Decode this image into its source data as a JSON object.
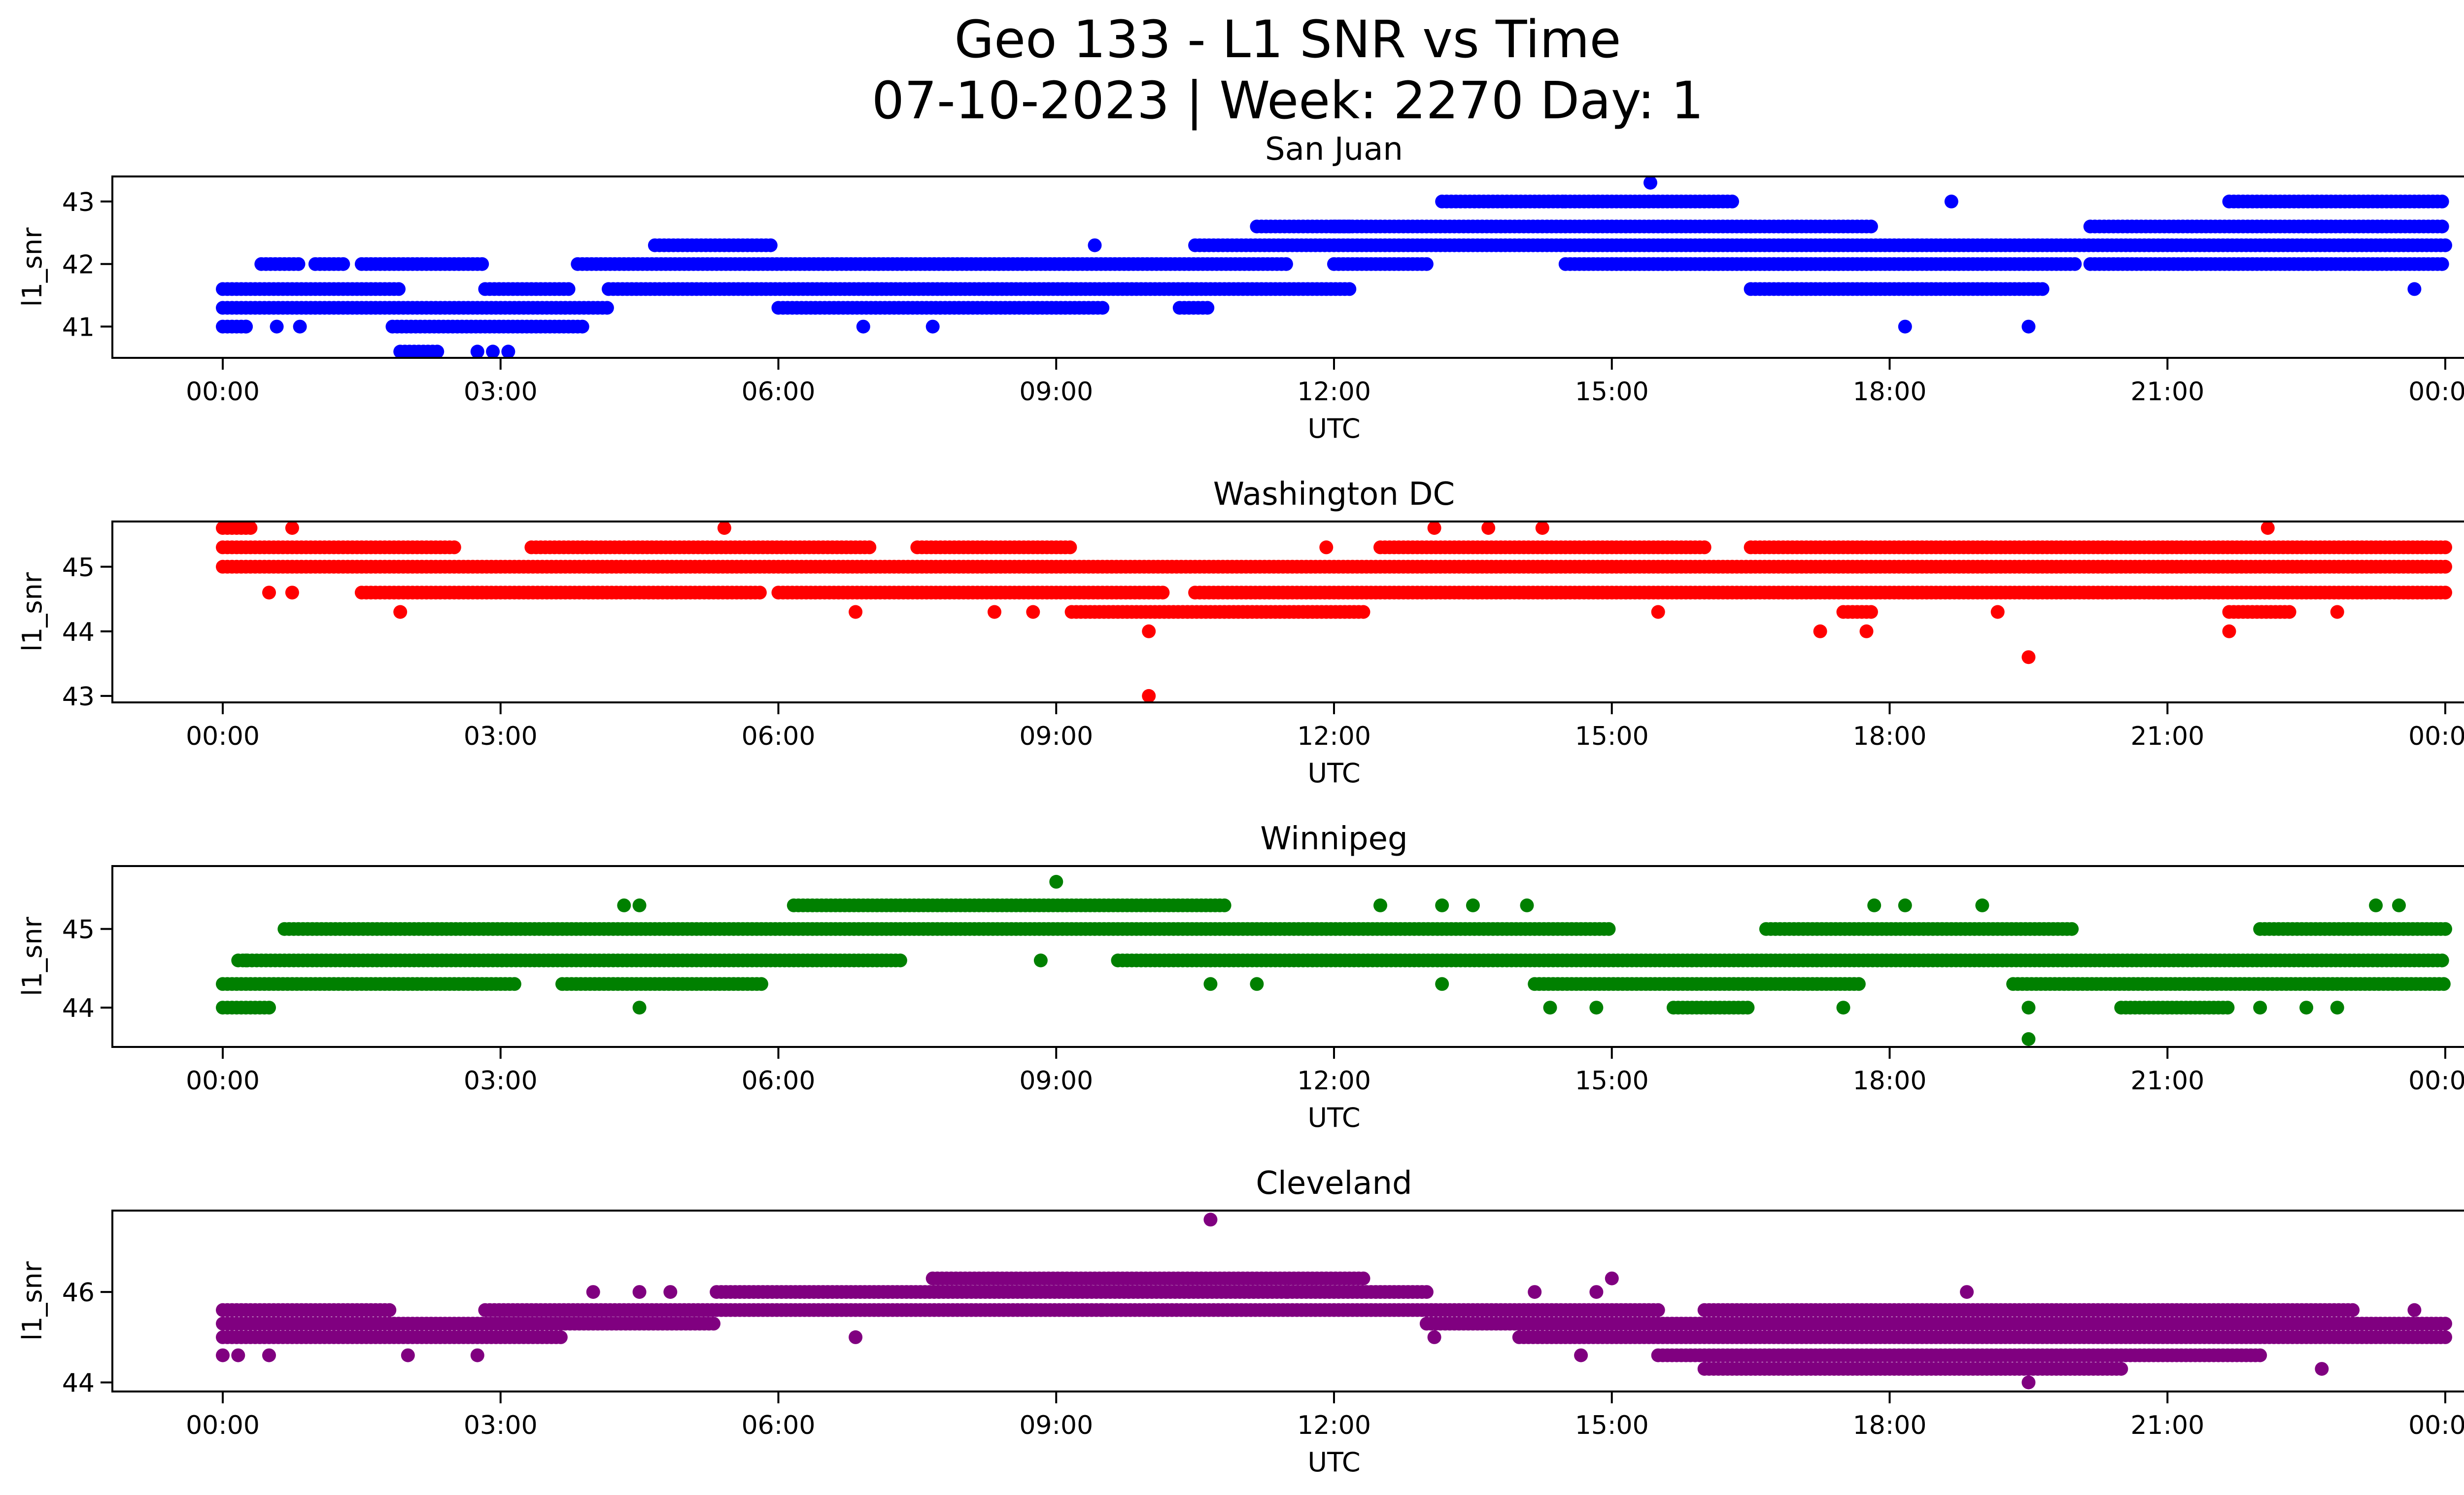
{
  "title": {
    "line1": "Geo 133 - L1 SNR vs Time",
    "line2": "07-10-2023 | Week: 2270 Day: 1"
  },
  "colors": {
    "san_juan": "#0000ff",
    "washington_dc": "#ff0000",
    "winnipeg": "#008000",
    "cleveland": "#800080"
  },
  "chart_data": [
    {
      "type": "scatter",
      "title": "San Juan",
      "xlabel": "UTC",
      "ylabel": "l1_snr",
      "color": "#0000ff",
      "x_tick_labels": [
        "00:00",
        "03:00",
        "06:00",
        "09:00",
        "12:00",
        "15:00",
        "18:00",
        "21:00",
        "00:00"
      ],
      "xlim": [
        "2023-07-10T00:00",
        "2023-07-11T00:00"
      ],
      "ylim": [
        40.5,
        43.4
      ],
      "yticks": [
        41,
        42,
        43
      ],
      "bands": [
        {
          "y": 41.6,
          "segments": [
            [
              "00:00",
              "01:55"
            ],
            [
              "02:50",
              "03:45"
            ],
            [
              "04:10",
              "12:10"
            ]
          ]
        },
        {
          "y": 41.3,
          "segments": [
            [
              "00:00",
              "04:10"
            ],
            [
              "06:00",
              "09:30"
            ],
            [
              "10:20",
              "10:40"
            ]
          ]
        },
        {
          "y": 41.0,
          "segments": [
            [
              "00:00",
              "00:15"
            ],
            [
              "01:50",
              "03:55"
            ]
          ]
        },
        {
          "y": 42.0,
          "segments": [
            [
              "00:25",
              "00:50"
            ],
            [
              "01:00",
              "01:20"
            ],
            [
              "01:30",
              "02:50"
            ],
            [
              "03:50",
              "11:30"
            ],
            [
              "12:00",
              "13:00"
            ],
            [
              "14:30",
              "20:00"
            ]
          ]
        },
        {
          "y": 42.3,
          "segments": [
            [
              "04:40",
              "05:55"
            ],
            [
              "10:30",
              "24:00"
            ]
          ]
        },
        {
          "y": 42.6,
          "segments": [
            [
              "11:10",
              "12:10"
            ],
            [
              "12:00",
              "16:30"
            ],
            [
              "16:30",
              "17:50"
            ],
            [
              "20:10",
              "24:00"
            ]
          ]
        },
        {
          "y": 43.0,
          "segments": [
            [
              "13:10",
              "14:30"
            ],
            [
              "14:30",
              "16:20"
            ],
            [
              "21:40",
              "23:59"
            ]
          ]
        },
        {
          "y": 41.6,
          "segments": [
            [
              "16:30",
              "19:40"
            ]
          ]
        },
        {
          "y": 42.0,
          "segments": [
            [
              "15:00",
              "17:50"
            ],
            [
              "20:10",
              "24:00"
            ]
          ]
        },
        {
          "y": 40.6,
          "segments": [
            [
              "01:55",
              "02:20"
            ]
          ]
        }
      ],
      "outliers": [
        {
          "x": "02:45",
          "y": 40.6
        },
        {
          "x": "02:55",
          "y": 40.6
        },
        {
          "x": "03:05",
          "y": 40.6
        },
        {
          "x": "00:15",
          "y": 41.0
        },
        {
          "x": "00:35",
          "y": 41.0
        },
        {
          "x": "00:50",
          "y": 41.0
        },
        {
          "x": "06:55",
          "y": 41.0
        },
        {
          "x": "07:40",
          "y": 41.0
        },
        {
          "x": "09:25",
          "y": 42.3
        },
        {
          "x": "15:25",
          "y": 43.3
        },
        {
          "x": "18:10",
          "y": 41.0
        },
        {
          "x": "19:30",
          "y": 41.0
        },
        {
          "x": "18:40",
          "y": 43.0
        },
        {
          "x": "23:40",
          "y": 41.6
        }
      ]
    },
    {
      "type": "scatter",
      "title": "Washington DC",
      "xlabel": "UTC",
      "ylabel": "l1_snr",
      "color": "#ff0000",
      "x_tick_labels": [
        "00:00",
        "03:00",
        "06:00",
        "09:00",
        "12:00",
        "15:00",
        "18:00",
        "21:00",
        "00:00"
      ],
      "xlim": [
        "2023-07-10T00:00",
        "2023-07-11T00:00"
      ],
      "ylim": [
        42.9,
        45.7
      ],
      "yticks": [
        43,
        44,
        45
      ],
      "bands": [
        {
          "y": 45.3,
          "segments": [
            [
              "00:00",
              "02:30"
            ],
            [
              "03:20",
              "07:00"
            ],
            [
              "07:30",
              "09:10"
            ],
            [
              "12:30",
              "16:00"
            ],
            [
              "16:30",
              "24:00"
            ]
          ]
        },
        {
          "y": 45.0,
          "segments": [
            [
              "00:00",
              "24:00"
            ]
          ]
        },
        {
          "y": 44.6,
          "segments": [
            [
              "01:30",
              "05:50"
            ],
            [
              "06:00",
              "10:10"
            ],
            [
              "10:30",
              "24:00"
            ]
          ]
        },
        {
          "y": 44.3,
          "segments": [
            [
              "09:10",
              "12:20"
            ],
            [
              "17:30",
              "17:50"
            ],
            [
              "21:40",
              "22:20"
            ]
          ]
        },
        {
          "y": 45.6,
          "segments": [
            [
              "00:00",
              "00:20"
            ]
          ]
        }
      ],
      "outliers": [
        {
          "x": "00:30",
          "y": 44.6
        },
        {
          "x": "00:45",
          "y": 44.6
        },
        {
          "x": "00:45",
          "y": 45.6
        },
        {
          "x": "01:55",
          "y": 44.3
        },
        {
          "x": "05:25",
          "y": 45.6
        },
        {
          "x": "06:50",
          "y": 44.3
        },
        {
          "x": "08:20",
          "y": 44.3
        },
        {
          "x": "08:45",
          "y": 44.3
        },
        {
          "x": "10:00",
          "y": 44.0
        },
        {
          "x": "10:00",
          "y": 43.0
        },
        {
          "x": "13:05",
          "y": 45.6
        },
        {
          "x": "13:40",
          "y": 45.6
        },
        {
          "x": "14:15",
          "y": 45.6
        },
        {
          "x": "15:30",
          "y": 44.3
        },
        {
          "x": "17:15",
          "y": 44.0
        },
        {
          "x": "17:45",
          "y": 44.0
        },
        {
          "x": "19:30",
          "y": 43.6
        },
        {
          "x": "19:10",
          "y": 44.3
        },
        {
          "x": "21:40",
          "y": 44.0
        },
        {
          "x": "22:05",
          "y": 45.6
        },
        {
          "x": "22:50",
          "y": 44.3
        },
        {
          "x": "11:55",
          "y": 45.3
        }
      ]
    },
    {
      "type": "scatter",
      "title": "Winnipeg",
      "xlabel": "UTC",
      "ylabel": "l1_snr",
      "color": "#008000",
      "x_tick_labels": [
        "00:00",
        "03:00",
        "06:00",
        "09:00",
        "12:00",
        "15:00",
        "18:00",
        "21:00",
        "00:00"
      ],
      "xlim": [
        "2023-07-10T00:00",
        "2023-07-11T00:00"
      ],
      "ylim": [
        43.5,
        45.8
      ],
      "yticks": [
        44,
        45
      ],
      "bands": [
        {
          "y": 45.0,
          "segments": [
            [
              "00:40",
              "15:00"
            ],
            [
              "16:40",
              "20:00"
            ],
            [
              "22:00",
              "24:00"
            ]
          ]
        },
        {
          "y": 44.6,
          "segments": [
            [
              "00:10",
              "07:20"
            ],
            [
              "09:40",
              "10:40"
            ],
            [
              "10:40",
              "24:00"
            ]
          ]
        },
        {
          "y": 44.3,
          "segments": [
            [
              "00:00",
              "03:10"
            ],
            [
              "03:40",
              "05:50"
            ],
            [
              "14:10",
              "17:40"
            ],
            [
              "19:20",
              "24:00"
            ]
          ]
        },
        {
          "y": 44.0,
          "segments": [
            [
              "00:00",
              "00:30"
            ],
            [
              "15:40",
              "16:30"
            ],
            [
              "20:30",
              "21:40"
            ]
          ]
        },
        {
          "y": 45.3,
          "segments": [
            [
              "06:10",
              "10:50"
            ]
          ]
        }
      ],
      "outliers": [
        {
          "x": "04:20",
          "y": 45.3
        },
        {
          "x": "04:30",
          "y": 45.3
        },
        {
          "x": "04:30",
          "y": 44.0
        },
        {
          "x": "09:00",
          "y": 45.6
        },
        {
          "x": "08:50",
          "y": 44.6
        },
        {
          "x": "10:40",
          "y": 44.3
        },
        {
          "x": "11:10",
          "y": 44.3
        },
        {
          "x": "12:30",
          "y": 45.3
        },
        {
          "x": "13:10",
          "y": 45.3
        },
        {
          "x": "13:30",
          "y": 45.3
        },
        {
          "x": "14:05",
          "y": 45.3
        },
        {
          "x": "13:10",
          "y": 44.3
        },
        {
          "x": "14:20",
          "y": 44.0
        },
        {
          "x": "14:50",
          "y": 44.0
        },
        {
          "x": "17:30",
          "y": 44.0
        },
        {
          "x": "17:50",
          "y": 45.3
        },
        {
          "x": "18:10",
          "y": 45.3
        },
        {
          "x": "19:00",
          "y": 45.3
        },
        {
          "x": "19:30",
          "y": 44.0
        },
        {
          "x": "19:30",
          "y": 43.6
        },
        {
          "x": "22:00",
          "y": 44.0
        },
        {
          "x": "22:30",
          "y": 44.0
        },
        {
          "x": "22:50",
          "y": 44.0
        },
        {
          "x": "23:15",
          "y": 45.3
        },
        {
          "x": "23:30",
          "y": 45.3
        },
        {
          "x": "00:15",
          "y": 44.6
        }
      ]
    },
    {
      "type": "scatter",
      "title": "Cleveland",
      "xlabel": "UTC",
      "ylabel": "l1_snr",
      "color": "#800080",
      "x_tick_labels": [
        "00:00",
        "03:00",
        "06:00",
        "09:00",
        "12:00",
        "15:00",
        "18:00",
        "21:00",
        "00:00"
      ],
      "xlim": [
        "2023-07-10T00:00",
        "2023-07-11T00:00"
      ],
      "ylim": [
        43.8,
        47.8
      ],
      "yticks": [
        44,
        46
      ],
      "bands": [
        {
          "y": 45.0,
          "segments": [
            [
              "00:00",
              "03:40"
            ],
            [
              "14:00",
              "24:00"
            ]
          ]
        },
        {
          "y": 45.3,
          "segments": [
            [
              "00:00",
              "03:00"
            ],
            [
              "03:00",
              "05:20"
            ],
            [
              "13:00",
              "24:00"
            ]
          ]
        },
        {
          "y": 45.6,
          "segments": [
            [
              "02:50",
              "09:30"
            ],
            [
              "09:30",
              "15:30"
            ]
          ]
        },
        {
          "y": 46.0,
          "segments": [
            [
              "05:20",
              "11:30"
            ],
            [
              "11:30",
              "13:00"
            ]
          ]
        },
        {
          "y": 46.3,
          "segments": [
            [
              "07:40",
              "12:20"
            ]
          ]
        },
        {
          "y": 44.6,
          "segments": [
            [
              "15:30",
              "22:00"
            ]
          ]
        },
        {
          "y": 44.3,
          "segments": [
            [
              "16:00",
              "20:30"
            ]
          ]
        },
        {
          "y": 45.6,
          "segments": [
            [
              "00:00",
              "01:50"
            ],
            [
              "16:00",
              "23:00"
            ]
          ]
        }
      ],
      "outliers": [
        {
          "x": "00:00",
          "y": 44.6
        },
        {
          "x": "00:10",
          "y": 44.6
        },
        {
          "x": "00:30",
          "y": 44.6
        },
        {
          "x": "02:00",
          "y": 44.6
        },
        {
          "x": "02:45",
          "y": 44.6
        },
        {
          "x": "04:00",
          "y": 46.0
        },
        {
          "x": "04:30",
          "y": 46.0
        },
        {
          "x": "04:50",
          "y": 46.0
        },
        {
          "x": "06:50",
          "y": 45.0
        },
        {
          "x": "10:40",
          "y": 47.6
        },
        {
          "x": "13:05",
          "y": 45.0
        },
        {
          "x": "14:10",
          "y": 46.0
        },
        {
          "x": "14:50",
          "y": 46.0
        },
        {
          "x": "15:00",
          "y": 46.3
        },
        {
          "x": "14:40",
          "y": 44.6
        },
        {
          "x": "18:50",
          "y": 46.0
        },
        {
          "x": "19:30",
          "y": 44.0
        },
        {
          "x": "22:40",
          "y": 44.3
        },
        {
          "x": "23:40",
          "y": 45.6
        }
      ]
    }
  ]
}
